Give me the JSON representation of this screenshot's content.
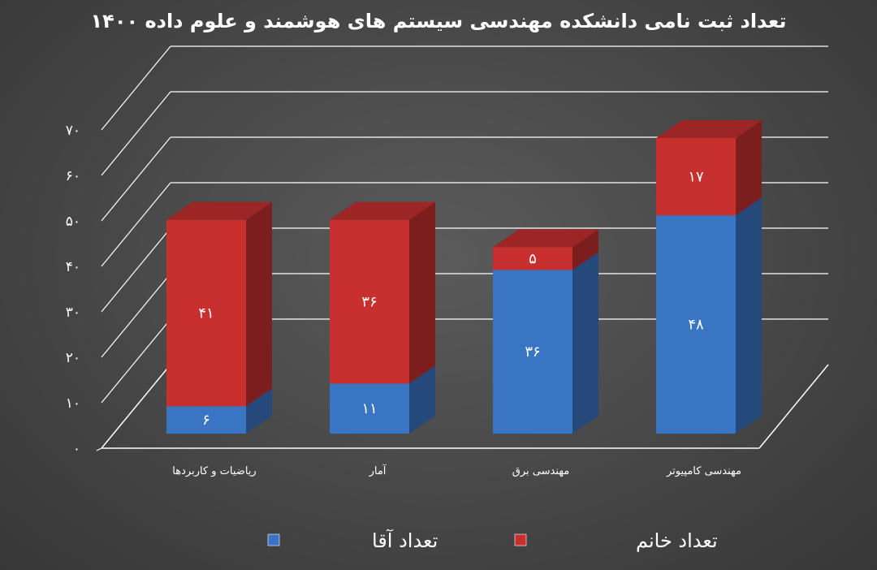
{
  "chart_data": {
    "type": "bar",
    "stacked": true,
    "three_d": true,
    "title": "تعداد ثبت نامی دانشکده مهندسی سیستم های هوشمند و علوم داده ۱۴۰۰",
    "categories": [
      "ریاضیات و کاربردها",
      "آمار",
      "مهندسی برق",
      "مهندسی کامپیوتر"
    ],
    "series": [
      {
        "name": "تعداد آقا",
        "color": "#3a75c4",
        "values": [
          6,
          11,
          36,
          48
        ],
        "value_labels": [
          "۶",
          "۱۱",
          "۳۶",
          "۴۸"
        ]
      },
      {
        "name": "تعداد خانم",
        "color": "#c8302f",
        "values": [
          41,
          36,
          5,
          17
        ],
        "value_labels": [
          "۴۱",
          "۳۶",
          "۵",
          "۱۷"
        ]
      }
    ],
    "ylim": [
      0,
      70
    ],
    "yticks": [
      0,
      10,
      20,
      30,
      40,
      50,
      60,
      70
    ],
    "ytick_labels": [
      "۰",
      "۱۰",
      "۲۰",
      "۳۰",
      "۴۰",
      "۵۰",
      "۶۰",
      "۷۰"
    ],
    "grid": true,
    "legend_position": "bottom"
  }
}
